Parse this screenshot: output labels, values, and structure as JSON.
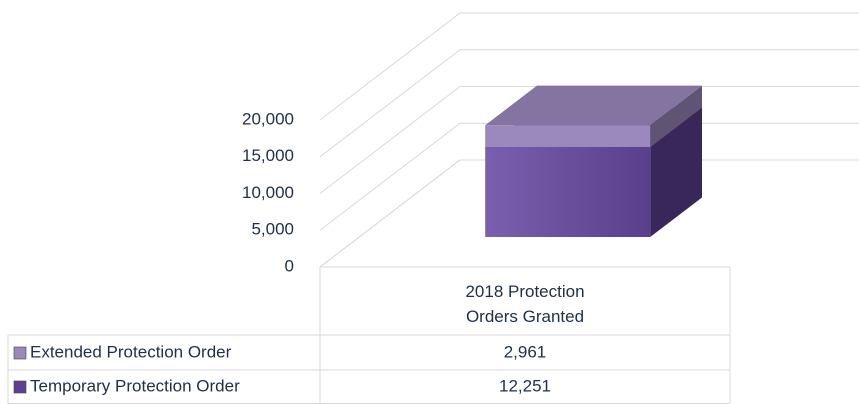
{
  "chart_data": {
    "type": "bar3d_stacked",
    "categories": [
      "2018 Protection Orders Granted"
    ],
    "series": [
      {
        "name": "Extended Protection Order",
        "color": "#9b88bd",
        "values": [
          2961
        ],
        "value_labels": [
          "2,961"
        ]
      },
      {
        "name": "Temporary Protection Order",
        "color": "#5e3f91",
        "values": [
          12251
        ],
        "value_labels": [
          "12,251"
        ]
      }
    ],
    "ylim": [
      0,
      20000
    ],
    "yticks": [
      0,
      {
        "value": 5000,
        "label": "5,000"
      },
      {
        "value": 10000,
        "label": "10,000"
      },
      {
        "value": 15000,
        "label": "15,000"
      },
      {
        "value": 20000,
        "label": "20,000"
      }
    ],
    "grid": true,
    "data_table": true
  }
}
